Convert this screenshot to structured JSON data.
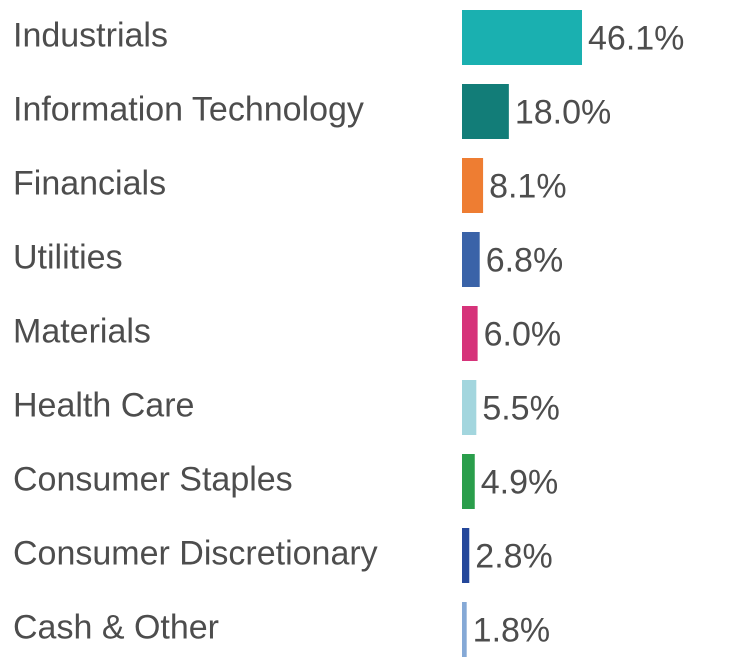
{
  "chart_data": {
    "type": "bar",
    "orientation": "horizontal",
    "categories": [
      "Industrials",
      "Information Technology",
      "Financials",
      "Utilities",
      "Materials",
      "Health Care",
      "Consumer Staples",
      "Consumer Discretionary",
      "Cash & Other"
    ],
    "values": [
      46.1,
      18.0,
      8.1,
      6.8,
      6.0,
      5.5,
      4.9,
      2.8,
      1.8
    ],
    "value_labels": [
      "46.1%",
      "18.0%",
      "8.1%",
      "6.8%",
      "6.0%",
      "5.5%",
      "4.9%",
      "2.8%",
      "1.8%"
    ],
    "colors": [
      "#1ab0b0",
      "#127d78",
      "#ee7d32",
      "#3a63a8",
      "#d6337a",
      "#a3d6de",
      "#2a9e4b",
      "#24479a",
      "#85a9d6"
    ],
    "unit": "%",
    "grid": false,
    "legend": "none"
  }
}
